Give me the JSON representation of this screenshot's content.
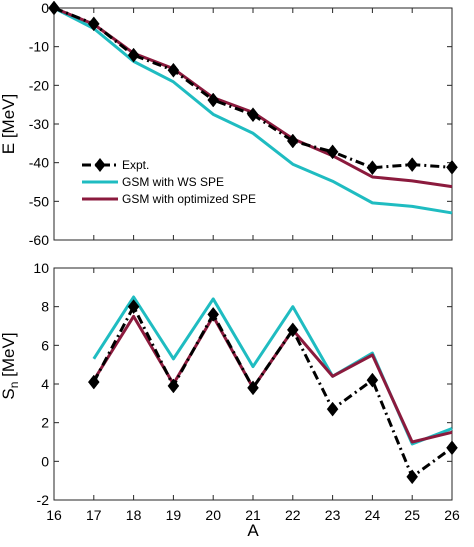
{
  "chart_data": [
    {
      "type": "line",
      "title": "",
      "xlabel": "",
      "ylabel": "E [MeV]",
      "xlim": [
        16,
        26
      ],
      "ylim": [
        -60,
        0
      ],
      "yticks": [
        0,
        -10,
        -20,
        -30,
        -40,
        -50,
        -60
      ],
      "grid": false,
      "legend_position": "lower-left",
      "series": [
        {
          "name": "Expt.",
          "color": "#000000",
          "style": "dash-dot",
          "marker": "diamond",
          "x": [
            16,
            17,
            18,
            19,
            20,
            21,
            22,
            23,
            24,
            25,
            26
          ],
          "values": [
            0,
            -4.1,
            -12.2,
            -16.1,
            -23.8,
            -27.6,
            -34.4,
            -37.2,
            -41.3,
            -40.5,
            -41.2
          ]
        },
        {
          "name": "GSM with WS SPE",
          "color": "#1fbcc1",
          "style": "solid",
          "marker": "none",
          "x": [
            16,
            17,
            18,
            19,
            20,
            21,
            22,
            23,
            24,
            25,
            26
          ],
          "values": [
            0,
            -5.3,
            -13.8,
            -19.1,
            -27.5,
            -32.4,
            -40.4,
            -44.8,
            -50.4,
            -51.3,
            -53.0
          ]
        },
        {
          "name": "GSM with optimized SPE",
          "color": "#8b1a3d",
          "style": "solid",
          "marker": "none",
          "x": [
            16,
            17,
            18,
            19,
            20,
            21,
            22,
            23,
            24,
            25,
            26
          ],
          "values": [
            0,
            -4.2,
            -11.7,
            -15.7,
            -23.2,
            -27.0,
            -33.8,
            -38.2,
            -43.7,
            -44.7,
            -46.2
          ]
        }
      ]
    },
    {
      "type": "line",
      "title": "",
      "xlabel": "A",
      "ylabel": "S_n [MeV]",
      "ylabel_main": "S",
      "ylabel_sub": "n",
      "ylabel_unit": " [MeV]",
      "xlim": [
        16,
        26
      ],
      "ylim": [
        -2,
        10
      ],
      "xticks": [
        16,
        17,
        18,
        19,
        20,
        21,
        22,
        23,
        24,
        25,
        26
      ],
      "yticks": [
        -2,
        0,
        2,
        4,
        6,
        8,
        10
      ],
      "grid": false,
      "series": [
        {
          "name": "Expt.",
          "color": "#000000",
          "style": "dash-dot",
          "marker": "diamond",
          "x": [
            17,
            18,
            19,
            20,
            21,
            22,
            23,
            24,
            25,
            26
          ],
          "values": [
            4.1,
            8.0,
            3.9,
            7.6,
            3.8,
            6.8,
            2.7,
            4.2,
            -0.8,
            0.7
          ]
        },
        {
          "name": "GSM with WS SPE",
          "color": "#1fbcc1",
          "style": "solid",
          "marker": "none",
          "x": [
            17,
            18,
            19,
            20,
            21,
            22,
            23,
            24,
            25,
            26
          ],
          "values": [
            5.3,
            8.5,
            5.3,
            8.4,
            4.9,
            8.0,
            4.4,
            5.6,
            0.9,
            1.7
          ]
        },
        {
          "name": "GSM with optimized SPE",
          "color": "#8b1a3d",
          "style": "solid",
          "marker": "none",
          "x": [
            17,
            18,
            19,
            20,
            21,
            22,
            23,
            24,
            25,
            26
          ],
          "values": [
            4.2,
            7.5,
            4.0,
            7.5,
            3.8,
            6.8,
            4.4,
            5.5,
            1.0,
            1.5
          ]
        }
      ]
    }
  ]
}
